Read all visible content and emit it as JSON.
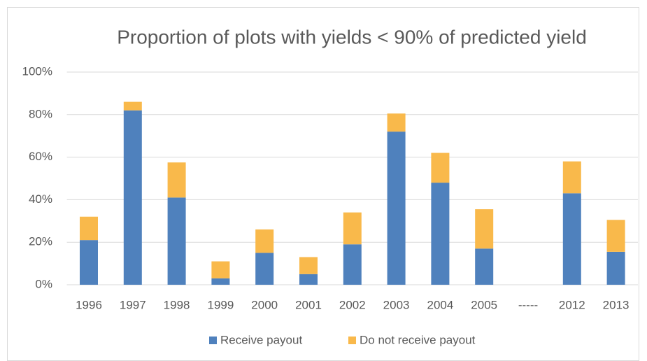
{
  "chart_data": {
    "type": "stacked_bar",
    "title": "Proportion of plots with yields < 90% of predicted yield",
    "categories": [
      "1996",
      "1997",
      "1998",
      "1999",
      "2000",
      "2001",
      "2002",
      "2003",
      "2004",
      "2005",
      "-----",
      "2012",
      "2013"
    ],
    "series": [
      {
        "name": "Receive payout",
        "color": "#4f81bd",
        "values": [
          21,
          82,
          41,
          3,
          15,
          5,
          19,
          72,
          48,
          17,
          null,
          43,
          15.5
        ]
      },
      {
        "name": "Do not receive payout",
        "color": "#f9b94b",
        "values": [
          11,
          4,
          16.5,
          8,
          11,
          8,
          15,
          8.5,
          14,
          18.5,
          null,
          15,
          15
        ]
      }
    ],
    "ylim": [
      0,
      100
    ],
    "yticks": [
      {
        "value": 0,
        "label": "0%"
      },
      {
        "value": 20,
        "label": "20%"
      },
      {
        "value": 40,
        "label": "40%"
      },
      {
        "value": 60,
        "label": "60%"
      },
      {
        "value": 80,
        "label": "80%"
      },
      {
        "value": 100,
        "label": "100%"
      }
    ],
    "grid": true,
    "legend": "bottom"
  }
}
